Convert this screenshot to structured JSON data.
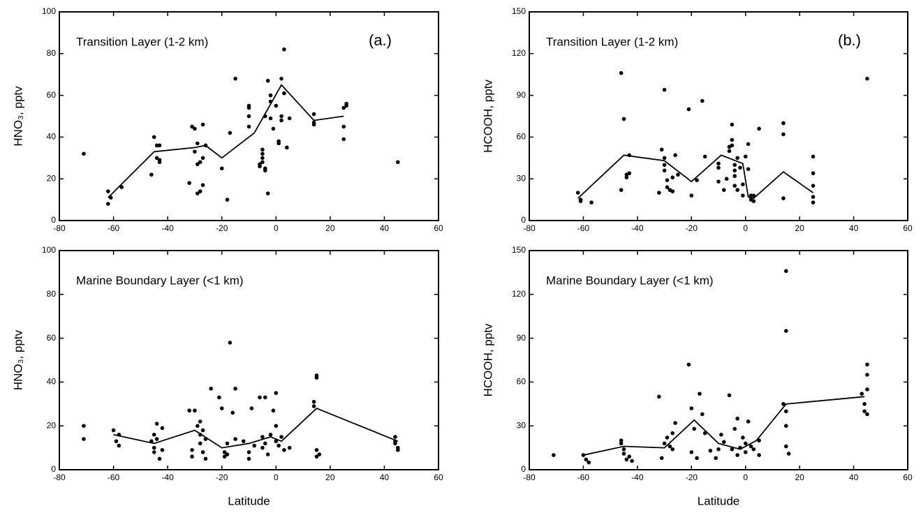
{
  "chart_data": [
    {
      "type": "scatter",
      "annotation": "Transition Layer (1-2 km)",
      "panel_label": "(a.)",
      "y_label": "HNO₃,  pptv",
      "xlim": [
        -80,
        60
      ],
      "xticks": [
        -80,
        -60,
        -40,
        -20,
        0,
        20,
        40,
        60
      ],
      "ylim": [
        0,
        100
      ],
      "yticks": [
        0,
        20,
        40,
        60,
        80,
        100
      ],
      "series": [
        {
          "type": "scatter",
          "color": "#000000",
          "x": [
            -71,
            -62,
            -62,
            -61,
            -57,
            -46,
            -45,
            -44,
            -44,
            -43,
            -43,
            -43,
            -32,
            -31,
            -30,
            -30,
            -29,
            -29,
            -29,
            -28,
            -28,
            -27,
            -27,
            -27,
            -26,
            -20,
            -18,
            -17,
            -15,
            -10,
            -10,
            -10,
            -10,
            -6,
            -6,
            -5,
            -5,
            -5,
            -5,
            -4,
            -4,
            -4,
            -3,
            -3,
            -2,
            -2,
            -2,
            -1,
            0,
            1,
            1,
            2,
            2,
            2,
            3,
            3,
            4,
            5,
            14,
            14,
            14,
            25,
            25,
            25,
            26,
            26,
            45
          ],
          "values": [
            32,
            8,
            14,
            11,
            16,
            22,
            40,
            36,
            30,
            29,
            28,
            36,
            18,
            45,
            44,
            33,
            37,
            13,
            27,
            14,
            28,
            30,
            46,
            17,
            36,
            25,
            10,
            42,
            68,
            45,
            50,
            55,
            54,
            26,
            27,
            34,
            32,
            30,
            28,
            25,
            24,
            50,
            67,
            13,
            60,
            57,
            49,
            44,
            55,
            37,
            38,
            50,
            48,
            68,
            82,
            61,
            35,
            49,
            51,
            47,
            46,
            39,
            45,
            54,
            56,
            55,
            28
          ]
        },
        {
          "type": "line",
          "color": "#000000",
          "x": [
            -62,
            -45,
            -30,
            -26,
            -20,
            -8,
            2,
            14,
            25
          ],
          "values": [
            11,
            33,
            35,
            36,
            30,
            42,
            65,
            48,
            50
          ]
        }
      ]
    },
    {
      "type": "scatter",
      "annotation": "Transition Layer (1-2 km)",
      "panel_label": "(b.)",
      "y_label": "HCOOH,  pptv",
      "xlim": [
        -80,
        60
      ],
      "xticks": [
        -80,
        -60,
        -40,
        -20,
        0,
        20,
        40,
        60
      ],
      "ylim": [
        0,
        150
      ],
      "yticks": [
        0,
        30,
        60,
        90,
        120,
        150
      ],
      "series": [
        {
          "type": "scatter",
          "color": "#000000",
          "x": [
            -62,
            -61,
            -61,
            -57,
            -46,
            -46,
            -45,
            -44,
            -44,
            -43,
            -43,
            -32,
            -31,
            -30,
            -30,
            -30,
            -30,
            -29,
            -29,
            -28,
            -27,
            -27,
            -27,
            -26,
            -25,
            -21,
            -20,
            -18,
            -16,
            -15,
            -10,
            -10,
            -10,
            -8,
            -7,
            -6,
            -6,
            -5,
            -5,
            -5,
            -4,
            -4,
            -4,
            -4,
            -3,
            -3,
            -2,
            -1,
            -1,
            0,
            1,
            1,
            2,
            2,
            3,
            3,
            5,
            14,
            14,
            14,
            25,
            25,
            25,
            25,
            25,
            45
          ],
          "values": [
            20,
            15,
            14,
            13,
            106,
            22,
            73,
            31,
            33,
            34,
            47,
            20,
            51,
            94,
            40,
            45,
            36,
            29,
            24,
            22,
            21,
            31,
            21,
            47,
            33,
            80,
            18,
            29,
            86,
            46,
            41,
            38,
            28,
            22,
            30,
            53,
            50,
            69,
            58,
            54,
            40,
            36,
            32,
            25,
            22,
            45,
            38,
            26,
            18,
            46,
            55,
            37,
            18,
            15,
            18,
            14,
            66,
            70,
            62,
            16,
            46,
            34,
            25,
            17,
            13,
            102
          ]
        },
        {
          "type": "line",
          "color": "#000000",
          "x": [
            -62,
            -45,
            -30,
            -20,
            -9,
            -1,
            1,
            3,
            14,
            25
          ],
          "values": [
            16,
            47,
            43,
            28,
            47,
            41,
            17,
            16,
            35,
            20
          ]
        }
      ]
    },
    {
      "type": "scatter",
      "annotation": "Marine Boundary Layer (<1 km)",
      "y_label": "HNO₃,  pptv",
      "x_label": "Latitude",
      "xlim": [
        -80,
        60
      ],
      "xticks": [
        -80,
        -60,
        -40,
        -20,
        0,
        20,
        40,
        60
      ],
      "ylim": [
        0,
        100
      ],
      "yticks": [
        0,
        20,
        40,
        60,
        80,
        100
      ],
      "series": [
        {
          "type": "scatter",
          "color": "#000000",
          "x": [
            -71,
            -71,
            -60,
            -59,
            -58,
            -58,
            -46,
            -45,
            -45,
            -45,
            -44,
            -44,
            -43,
            -42,
            -42,
            -32,
            -31,
            -31,
            -30,
            -29,
            -28,
            -28,
            -28,
            -27,
            -27,
            -26,
            -26,
            -24,
            -21,
            -20,
            -19,
            -19,
            -18,
            -18,
            -17,
            -16,
            -15,
            -15,
            -12,
            -10,
            -10,
            -9,
            -8,
            -6,
            -5,
            -5,
            -4,
            -4,
            -3,
            -2,
            -1,
            0,
            0,
            0,
            1,
            2,
            3,
            5,
            14,
            14,
            15,
            15,
            15,
            15,
            16,
            44,
            44,
            45,
            45,
            44
          ],
          "values": [
            20,
            14,
            18,
            13,
            16,
            11,
            13,
            10,
            16,
            8,
            21,
            14,
            5,
            9,
            19,
            27,
            9,
            6,
            27,
            20,
            22,
            16,
            12,
            18,
            8,
            14,
            5,
            37,
            33,
            28,
            8,
            6,
            7,
            12,
            58,
            26,
            37,
            14,
            13,
            8,
            5,
            28,
            11,
            33,
            15,
            10,
            33,
            12,
            7,
            16,
            27,
            35,
            20,
            13,
            11,
            15,
            9,
            10,
            31,
            29,
            43,
            42,
            9,
            6,
            7,
            15,
            13,
            10,
            9,
            12
          ]
        },
        {
          "type": "line",
          "color": "#000000",
          "x": [
            -60,
            -45,
            -30,
            -20,
            -10,
            -2,
            2,
            15,
            45
          ],
          "values": [
            16,
            12,
            18,
            10,
            12,
            15,
            13,
            28,
            13
          ]
        }
      ]
    },
    {
      "type": "scatter",
      "annotation": "Marine Boundary Layer (<1 km)",
      "y_label": "HCOOH,  pptv",
      "x_label": "Latitude",
      "xlim": [
        -80,
        60
      ],
      "xticks": [
        -80,
        -60,
        -40,
        -20,
        0,
        20,
        40,
        60
      ],
      "ylim": [
        0,
        150
      ],
      "yticks": [
        0,
        30,
        60,
        90,
        120,
        150
      ],
      "series": [
        {
          "type": "scatter",
          "color": "#000000",
          "x": [
            -71,
            -60,
            -59,
            -58,
            -46,
            -46,
            -45,
            -45,
            -44,
            -43,
            -42,
            -32,
            -31,
            -30,
            -29,
            -28,
            -27,
            -27,
            -26,
            -21,
            -20,
            -20,
            -19,
            -18,
            -17,
            -16,
            -15,
            -13,
            -11,
            -10,
            -9,
            -8,
            -6,
            -5,
            -4,
            -3,
            -3,
            -2,
            -1,
            0,
            0,
            1,
            2,
            3,
            5,
            5,
            15,
            15,
            14,
            15,
            15,
            15,
            16,
            43,
            44,
            44,
            45,
            45,
            45,
            45
          ],
          "values": [
            10,
            10,
            7,
            5,
            20,
            18,
            14,
            11,
            7,
            9,
            6,
            50,
            8,
            18,
            22,
            16,
            25,
            14,
            32,
            72,
            42,
            12,
            28,
            8,
            52,
            38,
            25,
            13,
            8,
            14,
            24,
            19,
            51,
            14,
            28,
            35,
            10,
            15,
            22,
            18,
            12,
            33,
            16,
            14,
            20,
            10,
            136,
            95,
            45,
            40,
            30,
            16,
            11,
            52,
            45,
            40,
            72,
            65,
            55,
            38
          ]
        },
        {
          "type": "line",
          "color": "#000000",
          "x": [
            -60,
            -45,
            -30,
            -19,
            -10,
            -2,
            4,
            15,
            44
          ],
          "values": [
            10,
            16,
            15,
            34,
            18,
            14,
            20,
            45,
            50
          ]
        }
      ]
    }
  ]
}
